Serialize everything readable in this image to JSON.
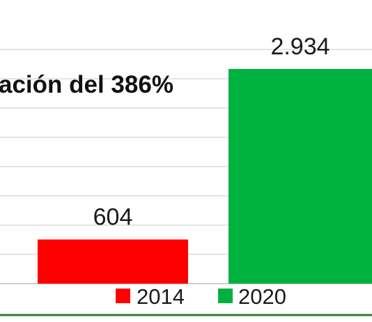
{
  "chart_data": {
    "type": "bar",
    "categories": [
      "2014",
      "2020"
    ],
    "series": [
      {
        "name": "2014",
        "values": [
          604,
          null
        ],
        "color": "#ff0000"
      },
      {
        "name": "2020",
        "values": [
          null,
          2934
        ],
        "color": "#00b140"
      }
    ],
    "data_labels": [
      "604",
      "2.934"
    ],
    "annotation": "ación del 386%",
    "ylim": [
      0,
      3400
    ],
    "grid": true,
    "legend_position": "bottom"
  }
}
